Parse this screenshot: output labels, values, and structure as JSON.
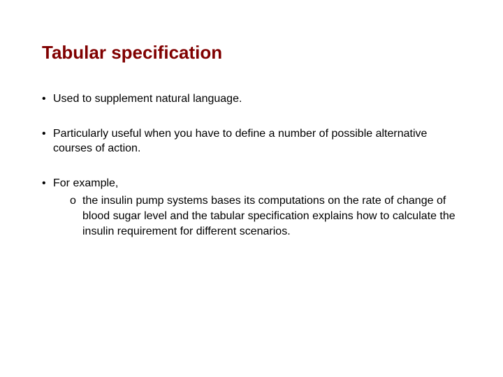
{
  "title": {
    "text": "Tabular specification",
    "color": "#800000",
    "fontsize": 26
  },
  "body": {
    "fontsize": 16,
    "color": "#000000"
  },
  "bullets": [
    {
      "text": "Used to supplement natural language."
    },
    {
      "text": "Particularly useful when you have to define a number of possible alternative courses of action."
    },
    {
      "text": "For example,",
      "sub": [
        "the insulin pump systems bases its computations on the rate of change of blood sugar level and the tabular specification explains how to calculate the insulin requirement for different scenarios."
      ]
    }
  ]
}
